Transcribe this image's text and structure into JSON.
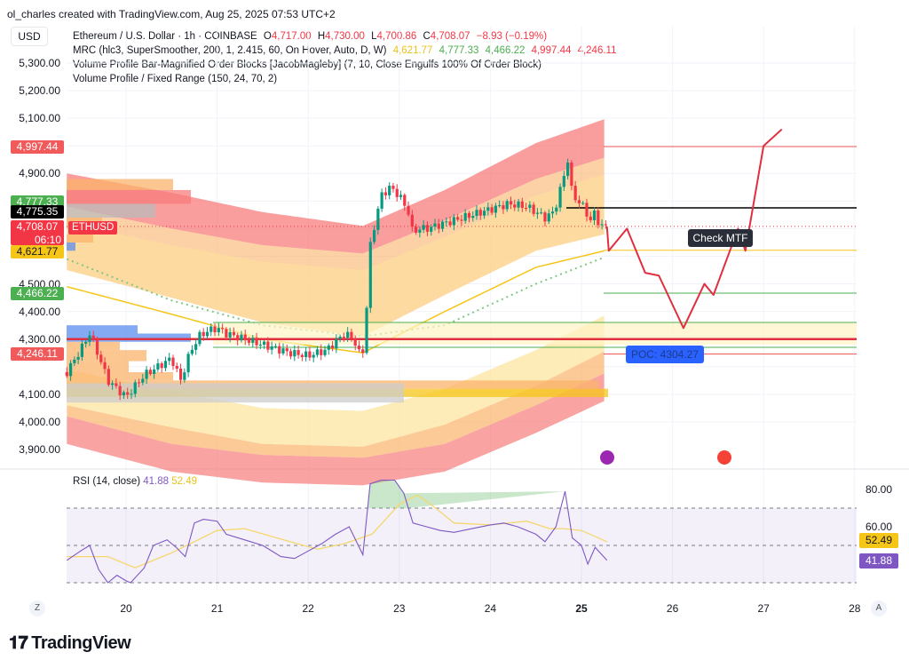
{
  "credit": "ol_charles created with TradingView.com, Aug 25, 2025 07:53 UTC+2",
  "currency": "USD",
  "legend": {
    "symbol": "Ethereum / U.S. Dollar · 1h · COINBASE",
    "o_label": "O",
    "o": "4,717.00",
    "h_label": "H",
    "h": "4,730.00",
    "l_label": "L",
    "l": "4,700.86",
    "c_label": "C",
    "c": "4,708.07",
    "change": "−8.93 (−0.19%)",
    "mrc": "MRC (hlc3, SuperSmoother, 200, 1, 2.415, 60, On Hover, Auto, D, W)",
    "mrc_values": [
      "4,621.77",
      "4,777.33",
      "4,466.22",
      "4,997.44",
      "4,246.11"
    ],
    "vp_ob": "Volume Profile Bar-Magnified Order Blocks [JacobMagleby] (7, 10, Close Engulfs 100% Of Order Block)",
    "vp_fixed": "Volume Profile / Fixed Range (150, 24, 70, 2)"
  },
  "price_axis": [
    "5,300.00",
    "5,200.00",
    "5,100.00",
    "4,900.00",
    "4,500.00",
    "4,400.00",
    "4,300.00",
    "4,100.00",
    "4,000.00",
    "3,900.00"
  ],
  "badges": [
    {
      "text": "4,997.44",
      "color": "#f05a5a"
    },
    {
      "text": "4,777.33",
      "color": "#4caf50"
    },
    {
      "text": "4,775.35",
      "color": "#000000"
    },
    {
      "text": "4,708.07",
      "sub": "06:10",
      "color": "#f23645"
    },
    {
      "text": "4,621.77",
      "color": "#f5c518"
    },
    {
      "text": "4,466.22",
      "color": "#4caf50"
    },
    {
      "text": "4,246.11",
      "color": "#f05a5a"
    }
  ],
  "ticker_tag": "ETHUSD",
  "annotations": {
    "check_mtf": "Check MTF",
    "poc": "POC: 4304.27"
  },
  "time_axis": [
    "20",
    "21",
    "22",
    "23",
    "24",
    "25",
    "26",
    "27",
    "28"
  ],
  "axis_buttons": {
    "left": "Z",
    "right": "A"
  },
  "rsi": {
    "label": "RSI (14, close)",
    "value": "41.88",
    "ma": "52.49",
    "axis": [
      "80.00",
      "60.00"
    ]
  },
  "logo": "TradingView",
  "colors": {
    "up": "#089981",
    "down": "#f23645",
    "rsi": "#7e57c2",
    "rsi_ma": "#f5d76e",
    "projection": "#e0303f"
  },
  "chart_data": {
    "type": "candlestick",
    "x_unit": "day of Aug 2025",
    "price_range": [
      3850,
      5350
    ],
    "close": [
      [
        19.35,
        4180
      ],
      [
        19.5,
        4260
      ],
      [
        19.6,
        4320
      ],
      [
        19.7,
        4240
      ],
      [
        19.8,
        4150
      ],
      [
        19.9,
        4120
      ],
      [
        20.0,
        4090
      ],
      [
        20.1,
        4130
      ],
      [
        20.2,
        4170
      ],
      [
        20.35,
        4200
      ],
      [
        20.5,
        4230
      ],
      [
        20.6,
        4150
      ],
      [
        20.7,
        4250
      ],
      [
        20.8,
        4310
      ],
      [
        20.9,
        4330
      ],
      [
        21.0,
        4340
      ],
      [
        21.1,
        4320
      ],
      [
        21.2,
        4310
      ],
      [
        21.4,
        4290
      ],
      [
        21.6,
        4270
      ],
      [
        21.8,
        4250
      ],
      [
        22.0,
        4240
      ],
      [
        22.1,
        4250
      ],
      [
        22.2,
        4260
      ],
      [
        22.3,
        4290
      ],
      [
        22.4,
        4320
      ],
      [
        22.5,
        4300
      ],
      [
        22.58,
        4230
      ],
      [
        22.63,
        4300
      ],
      [
        22.66,
        4600
      ],
      [
        22.72,
        4700
      ],
      [
        22.8,
        4820
      ],
      [
        22.9,
        4850
      ],
      [
        23.0,
        4820
      ],
      [
        23.1,
        4760
      ],
      [
        23.15,
        4680
      ],
      [
        23.2,
        4700
      ],
      [
        23.3,
        4700
      ],
      [
        23.5,
        4720
      ],
      [
        23.7,
        4740
      ],
      [
        23.9,
        4760
      ],
      [
        24.0,
        4770
      ],
      [
        24.2,
        4790
      ],
      [
        24.4,
        4780
      ],
      [
        24.5,
        4760
      ],
      [
        24.6,
        4740
      ],
      [
        24.7,
        4760
      ],
      [
        24.8,
        4880
      ],
      [
        24.85,
        4950
      ],
      [
        24.9,
        4820
      ],
      [
        25.0,
        4790
      ],
      [
        25.05,
        4760
      ],
      [
        25.1,
        4730
      ],
      [
        25.15,
        4760
      ],
      [
        25.2,
        4710
      ],
      [
        25.28,
        4708
      ]
    ],
    "mrc_mean": [
      [
        19.35,
        4490
      ],
      [
        20.5,
        4390
      ],
      [
        21.5,
        4300
      ],
      [
        22.6,
        4250
      ],
      [
        23.5,
        4400
      ],
      [
        24.5,
        4560
      ],
      [
        25.28,
        4622
      ]
    ],
    "mrc_upper_outer": [
      [
        19.35,
        4900
      ],
      [
        20.5,
        4830
      ],
      [
        21.5,
        4760
      ],
      [
        22.6,
        4710
      ],
      [
        23.5,
        4840
      ],
      [
        24.5,
        5010
      ],
      [
        25.28,
        5100
      ]
    ],
    "mrc_upper_inner": [
      [
        19.35,
        4780
      ],
      [
        20.5,
        4700
      ],
      [
        21.5,
        4640
      ],
      [
        22.6,
        4610
      ],
      [
        23.5,
        4730
      ],
      [
        24.5,
        4880
      ],
      [
        25.28,
        4960
      ]
    ],
    "mrc_lower_inner": [
      [
        19.35,
        4060
      ],
      [
        20.5,
        3980
      ],
      [
        21.5,
        3920
      ],
      [
        22.6,
        3910
      ],
      [
        23.5,
        3990
      ],
      [
        24.5,
        4130
      ],
      [
        25.28,
        4260
      ]
    ],
    "mrc_lower_outer": [
      [
        19.35,
        4000
      ],
      [
        20.5,
        3900
      ],
      [
        21.5,
        3860
      ],
      [
        22.6,
        3850
      ],
      [
        23.5,
        3900
      ],
      [
        24.5,
        4040
      ],
      [
        25.28,
        4160
      ]
    ],
    "dotted_ma": [
      [
        19.35,
        4590
      ],
      [
        20.5,
        4440
      ],
      [
        21.5,
        4350
      ],
      [
        22.6,
        4310
      ],
      [
        23.5,
        4350
      ],
      [
        24.5,
        4500
      ],
      [
        25.28,
        4600
      ]
    ],
    "levels": [
      {
        "price": 4997.44,
        "color": "#f05a5a"
      },
      {
        "price": 4775.35,
        "color": "#000000"
      },
      {
        "price": 4621.77,
        "color": "#f5c518"
      },
      {
        "price": 4466.22,
        "color": "#4caf50"
      },
      {
        "price": 4360,
        "color": "#4caf50"
      },
      {
        "price": 4300,
        "color": "#e0303f"
      },
      {
        "price": 4270,
        "color": "#4caf50"
      },
      {
        "price": 4246.11,
        "color": "#f05a5a"
      }
    ],
    "projection": [
      [
        25.28,
        4708
      ],
      [
        25.3,
        4620
      ],
      [
        25.5,
        4700
      ],
      [
        25.7,
        4540
      ],
      [
        25.85,
        4530
      ],
      [
        26.12,
        4340
      ],
      [
        26.35,
        4500
      ],
      [
        26.45,
        4460
      ],
      [
        26.72,
        4700
      ],
      [
        26.8,
        4620
      ],
      [
        27.0,
        5000
      ],
      [
        27.2,
        5060
      ]
    ],
    "rsi_range": [
      20,
      90
    ],
    "rsi_series": [
      [
        19.35,
        42
      ],
      [
        19.5,
        47
      ],
      [
        19.6,
        50
      ],
      [
        19.7,
        37
      ],
      [
        19.8,
        30
      ],
      [
        19.9,
        34
      ],
      [
        20.0,
        31
      ],
      [
        20.05,
        30
      ],
      [
        20.2,
        38
      ],
      [
        20.3,
        50
      ],
      [
        20.45,
        53
      ],
      [
        20.55,
        49
      ],
      [
        20.65,
        44
      ],
      [
        20.75,
        62
      ],
      [
        20.85,
        64
      ],
      [
        21.0,
        63
      ],
      [
        21.1,
        56
      ],
      [
        21.3,
        53
      ],
      [
        21.5,
        50
      ],
      [
        21.7,
        44
      ],
      [
        21.85,
        43
      ],
      [
        22.0,
        47
      ],
      [
        22.15,
        51
      ],
      [
        22.3,
        56
      ],
      [
        22.45,
        60
      ],
      [
        22.6,
        45
      ],
      [
        22.68,
        83
      ],
      [
        22.8,
        85
      ],
      [
        22.95,
        85
      ],
      [
        23.05,
        78
      ],
      [
        23.15,
        62
      ],
      [
        23.3,
        60
      ],
      [
        23.45,
        58
      ],
      [
        23.6,
        57
      ],
      [
        23.8,
        59
      ],
      [
        24.0,
        61
      ],
      [
        24.15,
        62
      ],
      [
        24.3,
        60
      ],
      [
        24.5,
        56
      ],
      [
        24.6,
        52
      ],
      [
        24.72,
        60
      ],
      [
        24.82,
        79
      ],
      [
        24.9,
        54
      ],
      [
        25.0,
        50
      ],
      [
        25.07,
        40
      ],
      [
        25.15,
        49
      ],
      [
        25.28,
        42
      ]
    ],
    "rsi_ma_series": [
      [
        19.35,
        44
      ],
      [
        19.8,
        44
      ],
      [
        20.1,
        38
      ],
      [
        20.5,
        46
      ],
      [
        21.0,
        58
      ],
      [
        21.3,
        59
      ],
      [
        21.8,
        52
      ],
      [
        22.1,
        48
      ],
      [
        22.4,
        51
      ],
      [
        22.7,
        56
      ],
      [
        23.0,
        72
      ],
      [
        23.2,
        77
      ],
      [
        23.4,
        70
      ],
      [
        23.6,
        62
      ],
      [
        24.0,
        61
      ],
      [
        24.4,
        63
      ],
      [
        24.65,
        59
      ],
      [
        24.8,
        59
      ],
      [
        25.0,
        58
      ],
      [
        25.28,
        52
      ]
    ]
  }
}
